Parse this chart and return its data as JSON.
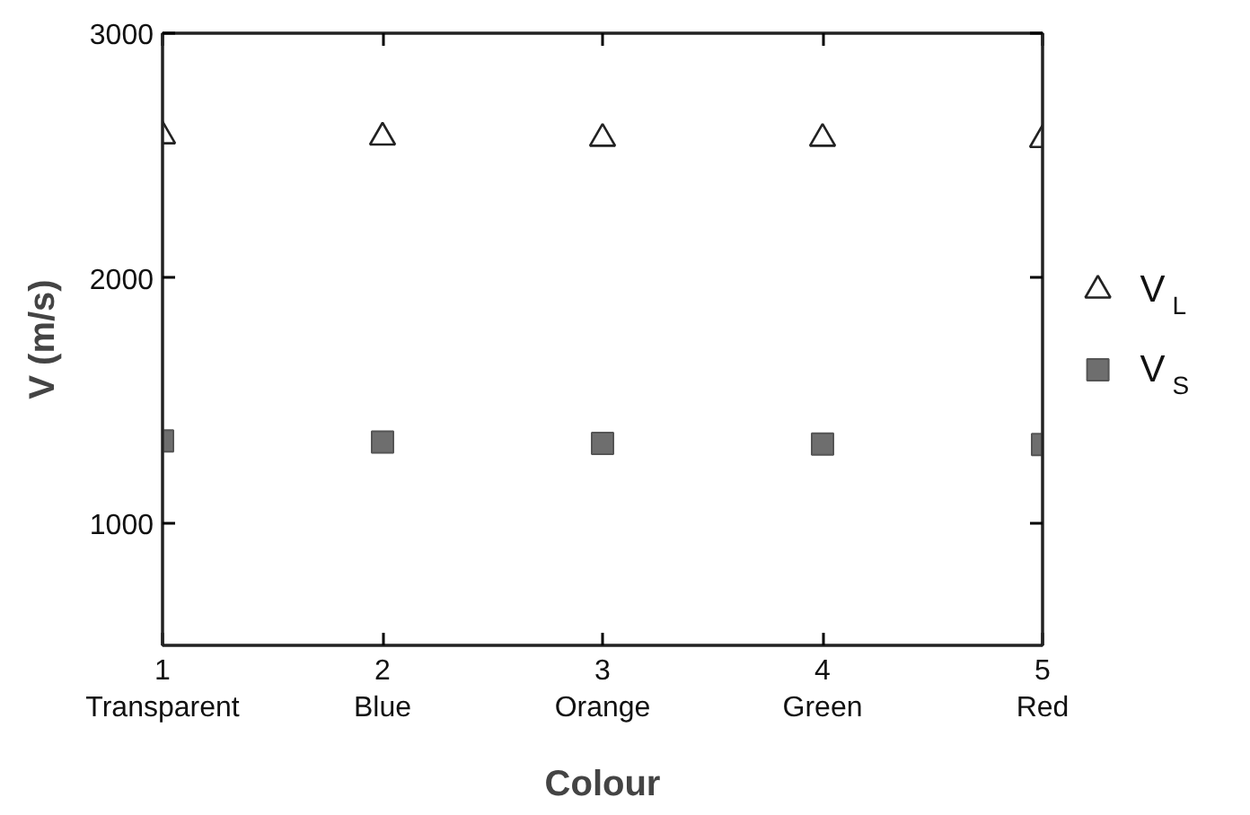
{
  "chart_data": {
    "type": "scatter",
    "xlabel": "Colour",
    "ylabel": "V (m/s)",
    "categories": [
      "1\nTransparent",
      "2\nBlue",
      "3\nOrange",
      "4\nGreen",
      "5\nRed"
    ],
    "ylim": [
      500,
      3000
    ],
    "yticks": [
      1000,
      2000,
      3000
    ],
    "grid": false,
    "legend": "right",
    "series": [
      {
        "name": "V$_{L}$",
        "color": "#222222",
        "marker": "triangle",
        "values": [
          2580,
          2575,
          2570,
          2570,
          2565
        ]
      },
      {
        "name": "V$_{S}$",
        "color": "#555555",
        "marker": "square",
        "values": [
          1335,
          1330,
          1325,
          1322,
          1320
        ]
      }
    ]
  }
}
